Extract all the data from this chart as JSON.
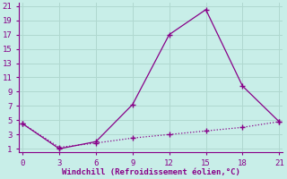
{
  "xlabel": "Windchill (Refroidissement éolien,°C)",
  "background_color": "#c8eee8",
  "grid_color": "#b0d8d0",
  "line_color": "#880088",
  "x_ticks": [
    0,
    3,
    6,
    9,
    12,
    15,
    18,
    21
  ],
  "xlim": [
    -0.3,
    21.3
  ],
  "ylim": [
    0.5,
    21.5
  ],
  "y_ticks": [
    1,
    3,
    5,
    7,
    9,
    11,
    13,
    15,
    17,
    19,
    21
  ],
  "series1_x": [
    0,
    3,
    6,
    9,
    12,
    15,
    18,
    21
  ],
  "series1_y": [
    4.5,
    1.0,
    2.0,
    7.2,
    17.0,
    20.5,
    9.8,
    4.8
  ],
  "series2_x": [
    0,
    3,
    6,
    9,
    12,
    15,
    18,
    21
  ],
  "series2_y": [
    4.5,
    1.2,
    1.8,
    2.5,
    3.0,
    3.5,
    4.0,
    4.8
  ],
  "tick_fontsize": 6.5,
  "xlabel_fontsize": 6.5
}
